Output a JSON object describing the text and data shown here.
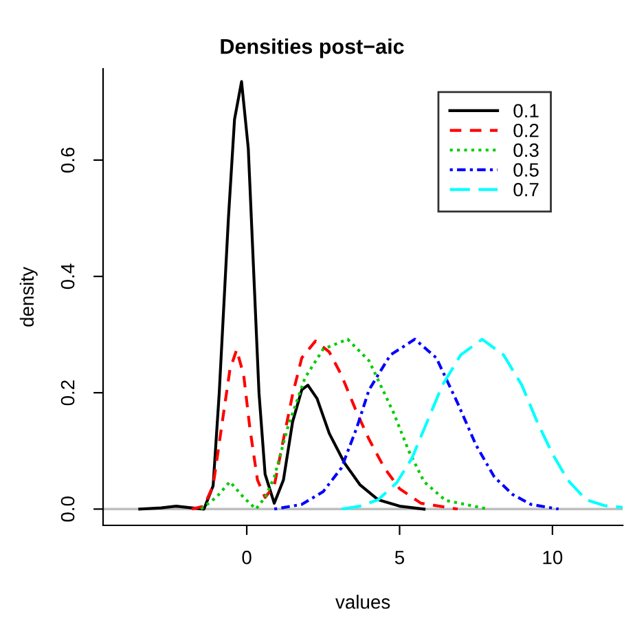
{
  "chart_data": {
    "type": "line",
    "title": "Densities post−aic",
    "xlabel": "values",
    "ylabel": "density",
    "xlim": [
      -4.7,
      12.3
    ],
    "ylim": [
      -0.028,
      0.757
    ],
    "xticks": [
      0,
      5,
      10
    ],
    "yticks": [
      {
        "value": 0,
        "label": "0.0"
      },
      {
        "value": 0.2,
        "label": "0.2"
      },
      {
        "value": 0.4,
        "label": "0.4"
      },
      {
        "value": 0.6,
        "label": "0.6"
      }
    ],
    "grid": false,
    "legend": "top right",
    "marker": "none",
    "ref_lines": [
      {
        "axis": "y",
        "value": 0,
        "color": "#bebebe"
      }
    ],
    "series": [
      {
        "name": "0.1",
        "color": "#000000",
        "line_style": "solid",
        "x": [
          -3.5,
          -2.8,
          -2.3,
          -1.8,
          -1.4,
          -1.1,
          -0.9,
          -0.6,
          -0.4,
          -0.17,
          0.05,
          0.25,
          0.4,
          0.6,
          0.9,
          1.2,
          1.5,
          1.8,
          2.0,
          2.3,
          2.7,
          3.2,
          3.7,
          4.3,
          5.0,
          5.8
        ],
        "values": [
          0.0,
          0.002,
          0.005,
          0.002,
          0.0,
          0.04,
          0.2,
          0.5,
          0.67,
          0.735,
          0.62,
          0.38,
          0.2,
          0.06,
          0.01,
          0.05,
          0.15,
          0.205,
          0.213,
          0.19,
          0.13,
          0.079,
          0.042,
          0.016,
          0.005,
          0.0
        ]
      },
      {
        "name": "0.2",
        "color": "#ff0000",
        "line_style": "dashed",
        "x": [
          -1.8,
          -1.4,
          -1.1,
          -0.8,
          -0.55,
          -0.33,
          -0.1,
          0.1,
          0.35,
          0.6,
          0.9,
          1.2,
          1.5,
          1.8,
          2.25,
          2.7,
          3.1,
          3.6,
          4.0,
          4.5,
          5.0,
          5.7,
          6.9
        ],
        "values": [
          0.0,
          0.005,
          0.04,
          0.15,
          0.24,
          0.274,
          0.23,
          0.14,
          0.05,
          0.02,
          0.04,
          0.12,
          0.197,
          0.26,
          0.289,
          0.27,
          0.23,
          0.166,
          0.12,
          0.071,
          0.035,
          0.01,
          0.0
        ]
      },
      {
        "name": "0.3",
        "color": "#00cd00",
        "line_style": "dotted",
        "x": [
          -1.5,
          -1.0,
          -0.55,
          -0.1,
          0.3,
          0.6,
          0.9,
          1.35,
          1.9,
          2.5,
          3.3,
          4.0,
          4.8,
          5.3,
          5.8,
          6.5,
          7.9
        ],
        "values": [
          0.0,
          0.02,
          0.047,
          0.02,
          0.0,
          0.02,
          0.055,
          0.142,
          0.225,
          0.275,
          0.292,
          0.255,
          0.166,
          0.1,
          0.047,
          0.015,
          0.0
        ]
      },
      {
        "name": "0.5",
        "color": "#0000ff",
        "line_style": "dashdot",
        "x": [
          0.9,
          1.8,
          2.5,
          3.1,
          3.6,
          4.0,
          4.7,
          5.5,
          6.2,
          6.9,
          7.5,
          8.1,
          8.7,
          9.3,
          10.2
        ],
        "values": [
          0.0,
          0.008,
          0.03,
          0.071,
          0.14,
          0.205,
          0.265,
          0.292,
          0.26,
          0.182,
          0.11,
          0.055,
          0.025,
          0.008,
          0.0
        ]
      },
      {
        "name": "0.7",
        "color": "#00ffff",
        "line_style": "longdash",
        "x": [
          3.1,
          3.7,
          4.3,
          4.9,
          5.4,
          5.9,
          6.4,
          7.0,
          7.7,
          8.4,
          9.0,
          9.5,
          10.0,
          10.5,
          11.1,
          11.7,
          12.3
        ],
        "values": [
          0.0,
          0.005,
          0.016,
          0.045,
          0.087,
          0.15,
          0.213,
          0.265,
          0.292,
          0.265,
          0.213,
          0.15,
          0.095,
          0.05,
          0.016,
          0.006,
          0.003
        ]
      }
    ]
  }
}
